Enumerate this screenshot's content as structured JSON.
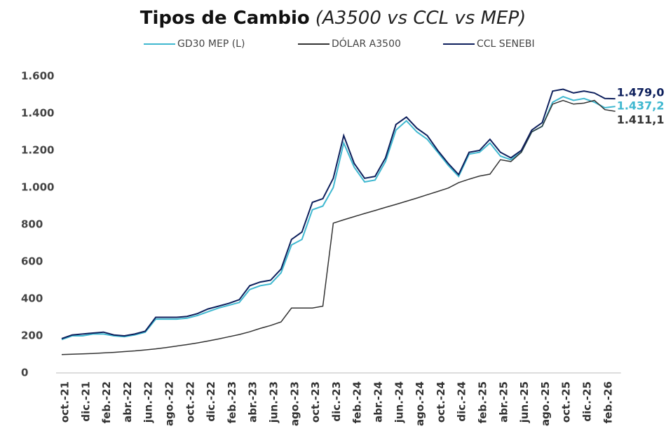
{
  "chart_data": {
    "type": "line",
    "title": "Tipos de Cambio",
    "subtitle": "(A3500 vs CCL vs MEP)",
    "categories": [
      "oct.-21",
      null,
      "dic.-21",
      null,
      "feb.-22",
      null,
      "abr.-22",
      null,
      "jun.-22",
      null,
      "ago.-22",
      null,
      "oct.-22",
      null,
      "dic.-22",
      null,
      "feb.-23",
      null,
      "abr.-23",
      null,
      "jun.-23",
      null,
      "ago.-23",
      null,
      "oct.-23",
      null,
      "dic.-23",
      null,
      "feb.-24",
      null,
      "abr.-24",
      null,
      "jun.-24",
      null,
      "ago.-24",
      null,
      "oct.-24",
      null,
      "dic.-24",
      null,
      "feb.-25",
      null,
      "abr.-25",
      null,
      "jun.-25",
      null,
      "ago.-25",
      null,
      "oct.-25",
      null,
      "dic.-25",
      null,
      "feb.-26",
      null
    ],
    "series": [
      {
        "name": "GD30 MEP (L)",
        "color": "#3fb8d0",
        "values": [
          180,
          200,
          200,
          210,
          210,
          200,
          195,
          205,
          220,
          290,
          290,
          290,
          295,
          310,
          330,
          350,
          365,
          380,
          450,
          470,
          480,
          540,
          690,
          720,
          880,
          900,
          1000,
          1240,
          1110,
          1030,
          1040,
          1140,
          1310,
          1360,
          1300,
          1260,
          1190,
          1120,
          1060,
          1180,
          1190,
          1240,
          1170,
          1150,
          1190,
          1300,
          1330,
          1460,
          1490,
          1470,
          1480,
          1460,
          1430,
          1437.2
        ],
        "value_labels": [
          null,
          null,
          null,
          null,
          null,
          null,
          null,
          null,
          null,
          null,
          null,
          null,
          null,
          null,
          null,
          null,
          null,
          null,
          null,
          null,
          null,
          null,
          null,
          null,
          null,
          null,
          null,
          null,
          null,
          null,
          null,
          null,
          null,
          null,
          null,
          null,
          null,
          null,
          null,
          null,
          null,
          null,
          null,
          null,
          null,
          null,
          null,
          null,
          null,
          null,
          null,
          null,
          null,
          "1.437,2"
        ]
      },
      {
        "name": "DÓLAR A3500",
        "color": "#333333",
        "values": [
          99,
          101,
          103,
          105,
          108,
          111,
          115,
          119,
          124,
          130,
          137,
          145,
          153,
          162,
          172,
          183,
          195,
          207,
          222,
          240,
          256,
          275,
          350,
          350,
          350,
          360,
          808,
          826,
          843,
          860,
          876,
          893,
          909,
          926,
          943,
          961,
          979,
          997,
          1026,
          1045,
          1062,
          1072,
          1150,
          1140,
          1190,
          1300,
          1330,
          1450,
          1470,
          1450,
          1455,
          1470,
          1420,
          1411.1
        ],
        "value_labels": [
          null,
          null,
          null,
          null,
          null,
          null,
          null,
          null,
          null,
          null,
          null,
          null,
          null,
          null,
          null,
          null,
          null,
          null,
          null,
          null,
          null,
          null,
          null,
          null,
          null,
          null,
          null,
          null,
          null,
          null,
          null,
          null,
          null,
          null,
          null,
          null,
          null,
          null,
          null,
          null,
          null,
          null,
          null,
          null,
          null,
          null,
          null,
          null,
          null,
          null,
          null,
          null,
          null,
          "1.411,1"
        ]
      },
      {
        "name": "CCL SENEBI",
        "color": "#0d1f5c",
        "values": [
          185,
          205,
          210,
          215,
          220,
          205,
          200,
          210,
          225,
          300,
          300,
          300,
          305,
          320,
          345,
          360,
          375,
          395,
          470,
          490,
          500,
          560,
          720,
          760,
          920,
          940,
          1050,
          1280,
          1130,
          1050,
          1060,
          1160,
          1340,
          1380,
          1320,
          1280,
          1200,
          1130,
          1070,
          1190,
          1200,
          1260,
          1190,
          1160,
          1200,
          1310,
          1350,
          1520,
          1530,
          1510,
          1520,
          1510,
          1480,
          1479.0
        ],
        "value_labels": [
          null,
          null,
          null,
          null,
          null,
          null,
          null,
          null,
          null,
          null,
          null,
          null,
          null,
          null,
          null,
          null,
          null,
          null,
          null,
          null,
          null,
          null,
          null,
          null,
          null,
          null,
          null,
          null,
          null,
          null,
          null,
          null,
          null,
          null,
          null,
          null,
          null,
          null,
          null,
          null,
          null,
          null,
          null,
          null,
          null,
          null,
          null,
          null,
          null,
          null,
          null,
          null,
          null,
          "1.479,0"
        ]
      }
    ],
    "ylim": [
      0,
      1600
    ],
    "yticks": [
      0,
      200,
      400,
      600,
      800,
      {
        "value": 1000,
        "label": "1.000"
      },
      {
        "value": 1200,
        "label": "1.200"
      },
      {
        "value": 1400,
        "label": "1.400"
      },
      {
        "value": 1600,
        "label": "1.600"
      }
    ],
    "grid": false
  }
}
